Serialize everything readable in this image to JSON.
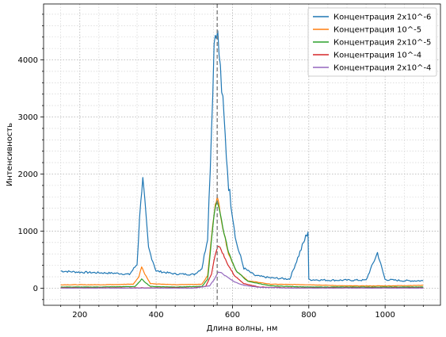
{
  "chart_data": {
    "type": "line",
    "xlabel": "Длина волны, нм",
    "ylabel": "Интенсивность",
    "xlim": [
      105,
      1145
    ],
    "ylim": [
      -300,
      4980
    ],
    "x_ticks": [
      200,
      400,
      600,
      800,
      1000
    ],
    "y_ticks": [
      0,
      1000,
      2000,
      3000,
      4000
    ],
    "x_tick_labels": [
      "200",
      "400",
      "600",
      "800",
      "1000"
    ],
    "y_tick_labels": [
      "0",
      "1000",
      "2000",
      "3000",
      "4000"
    ],
    "grid": "major and minor, dotted",
    "legend_position": "top-right",
    "vline": {
      "x": 560,
      "style": "dashed",
      "color": "#808080"
    },
    "series": [
      {
        "name": "Концентрация 2x10^-6",
        "color": "#1f77b4",
        "points": [
          [
            150,
            300
          ],
          [
            200,
            280
          ],
          [
            250,
            270
          ],
          [
            300,
            260
          ],
          [
            330,
            240
          ],
          [
            350,
            420
          ],
          [
            360,
            1600
          ],
          [
            365,
            1880
          ],
          [
            370,
            1500
          ],
          [
            380,
            700
          ],
          [
            400,
            300
          ],
          [
            450,
            250
          ],
          [
            500,
            240
          ],
          [
            520,
            350
          ],
          [
            535,
            900
          ],
          [
            545,
            2800
          ],
          [
            552,
            4300
          ],
          [
            558,
            4650
          ],
          [
            565,
            4100
          ],
          [
            575,
            3200
          ],
          [
            590,
            1800
          ],
          [
            610,
            800
          ],
          [
            630,
            350
          ],
          [
            660,
            220
          ],
          [
            700,
            180
          ],
          [
            750,
            160
          ],
          [
            798,
            1000
          ],
          [
            800,
            150
          ],
          [
            850,
            140
          ],
          [
            900,
            140
          ],
          [
            950,
            140
          ],
          [
            980,
            620
          ],
          [
            1000,
            150
          ],
          [
            1050,
            130
          ],
          [
            1100,
            130
          ]
        ]
      },
      {
        "name": "Концентрация 10^-5",
        "color": "#ff7f0e",
        "points": [
          [
            150,
            60
          ],
          [
            250,
            60
          ],
          [
            340,
            70
          ],
          [
            355,
            200
          ],
          [
            362,
            380
          ],
          [
            370,
            250
          ],
          [
            385,
            80
          ],
          [
            450,
            60
          ],
          [
            520,
            70
          ],
          [
            535,
            220
          ],
          [
            545,
            900
          ],
          [
            555,
            1500
          ],
          [
            560,
            1580
          ],
          [
            565,
            1450
          ],
          [
            575,
            1050
          ],
          [
            590,
            600
          ],
          [
            610,
            300
          ],
          [
            640,
            130
          ],
          [
            700,
            70
          ],
          [
            800,
            60
          ],
          [
            900,
            40
          ],
          [
            1000,
            40
          ],
          [
            1100,
            50
          ]
        ]
      },
      {
        "name": "Концентрация 2x10^-5",
        "color": "#2ca02c",
        "points": [
          [
            150,
            20
          ],
          [
            250,
            20
          ],
          [
            345,
            30
          ],
          [
            355,
            100
          ],
          [
            362,
            160
          ],
          [
            370,
            110
          ],
          [
            385,
            30
          ],
          [
            450,
            20
          ],
          [
            520,
            30
          ],
          [
            535,
            160
          ],
          [
            545,
            850
          ],
          [
            555,
            1450
          ],
          [
            560,
            1530
          ],
          [
            565,
            1420
          ],
          [
            575,
            1050
          ],
          [
            590,
            620
          ],
          [
            610,
            300
          ],
          [
            640,
            120
          ],
          [
            700,
            40
          ],
          [
            800,
            20
          ],
          [
            900,
            20
          ],
          [
            1000,
            20
          ],
          [
            1100,
            20
          ]
        ]
      },
      {
        "name": "Концентрация 10^-4",
        "color": "#d62728",
        "points": [
          [
            150,
            5
          ],
          [
            300,
            5
          ],
          [
            400,
            5
          ],
          [
            500,
            5
          ],
          [
            530,
            30
          ],
          [
            545,
            250
          ],
          [
            555,
            600
          ],
          [
            562,
            750
          ],
          [
            570,
            680
          ],
          [
            585,
            450
          ],
          [
            605,
            220
          ],
          [
            630,
            80
          ],
          [
            670,
            20
          ],
          [
            750,
            5
          ],
          [
            900,
            5
          ],
          [
            1100,
            5
          ]
        ]
      },
      {
        "name": "Концентрация 2x10^-4",
        "color": "#9467bd",
        "points": [
          [
            150,
            2
          ],
          [
            300,
            2
          ],
          [
            400,
            2
          ],
          [
            500,
            2
          ],
          [
            540,
            40
          ],
          [
            552,
            150
          ],
          [
            562,
            280
          ],
          [
            570,
            270
          ],
          [
            585,
            200
          ],
          [
            605,
            110
          ],
          [
            630,
            50
          ],
          [
            670,
            15
          ],
          [
            750,
            3
          ],
          [
            900,
            2
          ],
          [
            1100,
            2
          ]
        ]
      }
    ]
  }
}
